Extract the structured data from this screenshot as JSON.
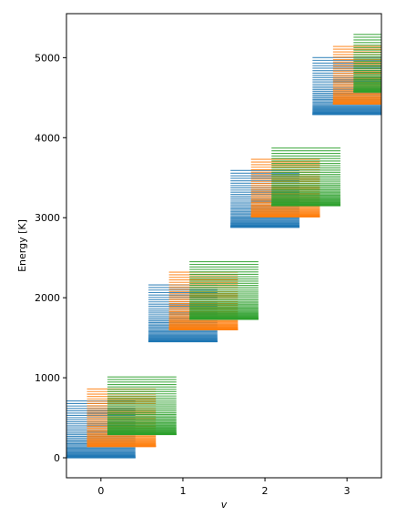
{
  "chart_data": {
    "type": "line",
    "xlabel": "v",
    "ylabel": "Energy [K]",
    "xlim": [
      -0.42,
      3.42
    ],
    "ylim": [
      -250,
      5550
    ],
    "x_ticks": [
      0,
      1,
      2,
      3
    ],
    "y_ticks": [
      0,
      1000,
      2000,
      3000,
      4000,
      5000
    ],
    "grid": false,
    "series": [
      {
        "color": "#1f77b4",
        "x_offset": 0.0,
        "base_energies": [
          0,
          1450,
          2880,
          4290
        ],
        "level_counts": [
          45,
          44,
          43,
          42
        ],
        "max_rise": 710
      },
      {
        "color": "#ff7f0e",
        "x_offset": 0.25,
        "base_energies": [
          140,
          1600,
          3010,
          4420
        ],
        "level_counts": [
          45,
          44,
          43,
          42
        ],
        "max_rise": 720
      },
      {
        "color": "#2ca02c",
        "x_offset": 0.5,
        "base_energies": [
          290,
          1730,
          3150,
          4570
        ],
        "level_counts": [
          45,
          44,
          43,
          42
        ],
        "max_rise": 720
      }
    ]
  }
}
